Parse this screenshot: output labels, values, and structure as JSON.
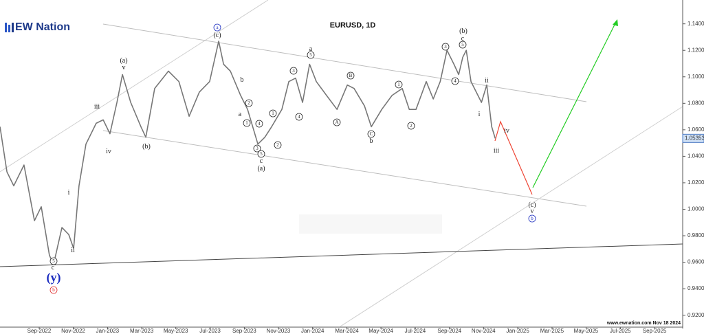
{
  "chart_data": {
    "type": "line",
    "title": "EURUSD, 1D",
    "logo": "EW Nation",
    "footer": "www.ewnation.com Nov 18 2024",
    "xlim": [
      2022.476,
      2025.804
    ],
    "ylim": [
      0.911,
      1.158
    ],
    "xticks": [
      {
        "value": 2022.667,
        "label": "Sep-2022"
      },
      {
        "value": 2022.833,
        "label": "Nov-2022"
      },
      {
        "value": 2023.0,
        "label": "Jan-2023"
      },
      {
        "value": 2023.167,
        "label": "Mar-2023"
      },
      {
        "value": 2023.333,
        "label": "May-2023"
      },
      {
        "value": 2023.5,
        "label": "Jul-2023"
      },
      {
        "value": 2023.667,
        "label": "Sep-2023"
      },
      {
        "value": 2023.833,
        "label": "Nov-2023"
      },
      {
        "value": 2024.0,
        "label": "Jan-2024"
      },
      {
        "value": 2024.167,
        "label": "Mar-2024"
      },
      {
        "value": 2024.333,
        "label": "May-2024"
      },
      {
        "value": 2024.5,
        "label": "Jul-2024"
      },
      {
        "value": 2024.667,
        "label": "Sep-2024"
      },
      {
        "value": 2024.833,
        "label": "Nov-2024"
      },
      {
        "value": 2025.0,
        "label": "Jan-2025"
      },
      {
        "value": 2025.167,
        "label": "Mar-2025"
      },
      {
        "value": 2025.333,
        "label": "May-2025"
      },
      {
        "value": 2025.5,
        "label": "Jul-2025"
      },
      {
        "value": 2025.667,
        "label": "Sep-2025"
      }
    ],
    "yticks": [
      {
        "value": 0.92,
        "label": "0.92000"
      },
      {
        "value": 0.94,
        "label": "0.94000"
      },
      {
        "value": 0.96,
        "label": "0.96000"
      },
      {
        "value": 0.98,
        "label": "0.98000"
      },
      {
        "value": 1.0,
        "label": "1.00000"
      },
      {
        "value": 1.02,
        "label": "1.02000"
      },
      {
        "value": 1.04,
        "label": "1.04000"
      },
      {
        "value": 1.06,
        "label": "1.06000"
      },
      {
        "value": 1.08,
        "label": "1.08000"
      },
      {
        "value": 1.1,
        "label": "1.10000"
      },
      {
        "value": 1.12,
        "label": "1.12000"
      },
      {
        "value": 1.14,
        "label": "1.14000"
      }
    ],
    "last_price": {
      "value": 1.05353,
      "label": "1.05353"
    },
    "series": [
      {
        "name": "EURUSD",
        "color": "#777777",
        "x": [
          2022.476,
          2022.51,
          2022.543,
          2022.593,
          2022.644,
          2022.677,
          2022.717,
          2022.737,
          2022.778,
          2022.811,
          2022.835,
          2022.861,
          2022.895,
          2022.945,
          2022.979,
          2023.012,
          2023.046,
          2023.073,
          2023.113,
          2023.163,
          2023.187,
          2023.23,
          2023.297,
          2023.348,
          2023.398,
          2023.448,
          2023.498,
          2023.542,
          2023.566,
          2023.599,
          2023.649,
          2023.683,
          2023.733,
          2023.767,
          2023.8,
          2023.85,
          2023.884,
          2023.917,
          2023.951,
          2023.985,
          2024.018,
          2024.068,
          2024.119,
          2024.169,
          2024.202,
          2024.253,
          2024.286,
          2024.337,
          2024.387,
          2024.437,
          2024.471,
          2024.504,
          2024.554,
          2024.588,
          2024.622,
          2024.655,
          2024.689,
          2024.712,
          2024.732,
          2024.749,
          2024.772,
          2024.823,
          2024.849,
          2024.873,
          2024.89
        ],
        "values": [
          1.0623,
          1.0282,
          1.0177,
          1.0334,
          0.9914,
          1.0019,
          0.9652,
          0.9583,
          0.9862,
          0.9809,
          0.9704,
          1.0177,
          1.0492,
          1.0649,
          1.0675,
          1.057,
          1.0807,
          1.1017,
          1.0807,
          1.0623,
          1.0544,
          1.0912,
          1.1043,
          1.0964,
          1.0702,
          1.0885,
          1.0964,
          1.1269,
          1.1095,
          1.1043,
          1.0859,
          1.0754,
          1.0492,
          1.0544,
          1.0623,
          1.0754,
          1.0964,
          1.099,
          1.0807,
          1.1095,
          1.0964,
          1.0859,
          1.0754,
          1.0938,
          1.0912,
          1.078,
          1.0623,
          1.0754,
          1.0859,
          1.0912,
          1.0754,
          1.0754,
          1.0964,
          1.0833,
          1.0964,
          1.12,
          1.1095,
          1.1017,
          1.1148,
          1.12,
          1.0964,
          1.0807,
          1.0938,
          1.0623,
          1.0535
        ]
      }
    ],
    "annotations": [
      {
        "text": "(y)",
        "color": "#1a2bbf"
      },
      {
        "text": "b",
        "circled": true,
        "color": "#d22"
      },
      {
        "text": "5",
        "circled": true
      },
      {
        "text": "c"
      },
      {
        "text": "(a)"
      },
      {
        "text": "v"
      },
      {
        "text": "iii"
      },
      {
        "text": "iv"
      },
      {
        "text": "(b)"
      },
      {
        "text": "i"
      },
      {
        "text": "ii"
      },
      {
        "text": "a",
        "circled": true,
        "color": "#1a2bbf"
      },
      {
        "text": "(c)"
      },
      {
        "text": "b"
      },
      {
        "text": "a"
      },
      {
        "text": "2",
        "circled": true
      },
      {
        "text": "1",
        "circled": true
      },
      {
        "text": "4",
        "circled": true
      },
      {
        "text": "3",
        "circled": true
      },
      {
        "text": "5",
        "circled": true
      },
      {
        "text": "c"
      },
      {
        "text": "(a)"
      },
      {
        "text": "1",
        "circled": true
      },
      {
        "text": "2",
        "circled": true
      },
      {
        "text": "3",
        "circled": true
      },
      {
        "text": "4",
        "circled": true
      },
      {
        "text": "a"
      },
      {
        "text": "5",
        "circled": true
      },
      {
        "text": "A",
        "circled": true
      },
      {
        "text": "B",
        "circled": true
      },
      {
        "text": "C",
        "circled": true
      },
      {
        "text": "b"
      },
      {
        "text": "1",
        "circled": true
      },
      {
        "text": "2",
        "circled": true
      },
      {
        "text": "3",
        "circled": true
      },
      {
        "text": "4",
        "circled": true
      },
      {
        "text": "5",
        "circled": true
      },
      {
        "text": "c"
      },
      {
        "text": "(b)"
      },
      {
        "text": "ii"
      },
      {
        "text": "i"
      },
      {
        "text": "iv"
      },
      {
        "text": "iii"
      },
      {
        "text": "(c)"
      },
      {
        "text": "v"
      },
      {
        "text": "b",
        "circled": true,
        "color": "#1a2bbf"
      }
    ]
  }
}
